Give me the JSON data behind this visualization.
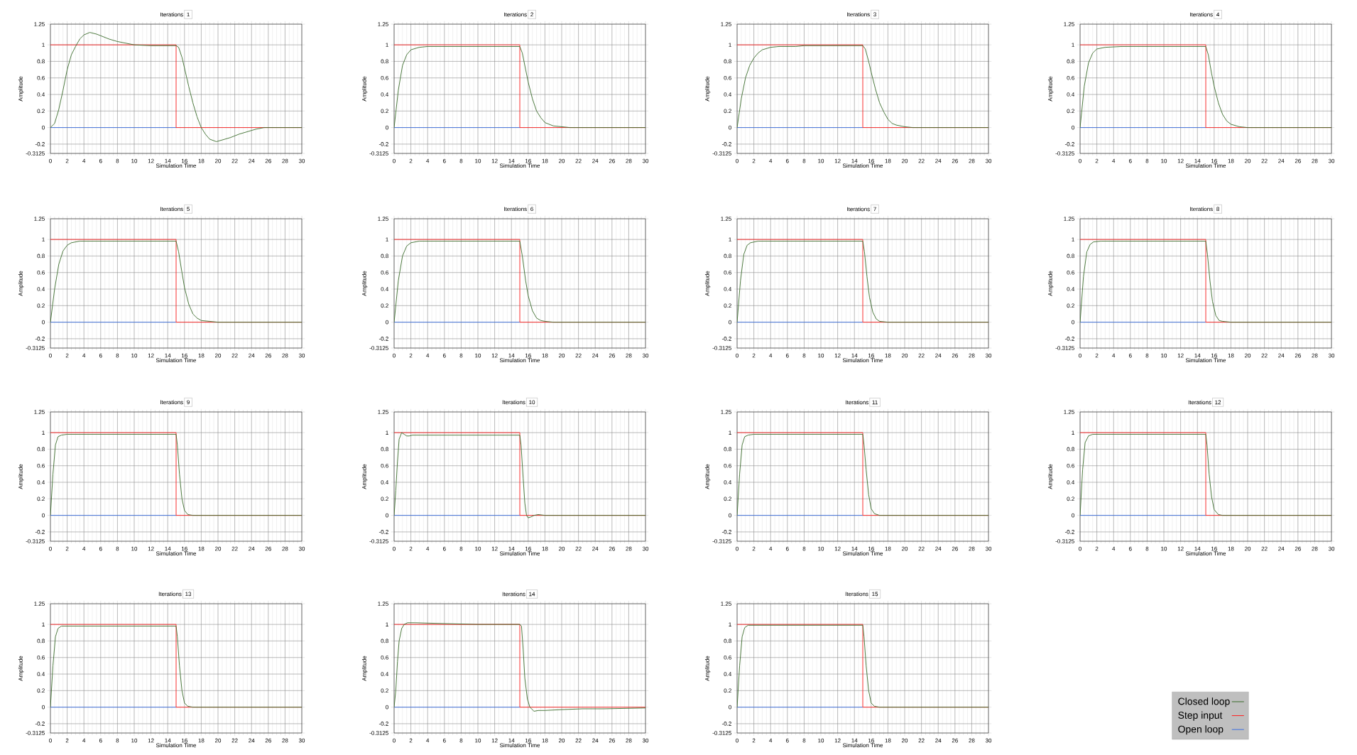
{
  "chart_data": [
    {
      "type": "line",
      "title": "Iterations",
      "subtitle": "1",
      "xlabel": "Simulation Time",
      "ylabel": "Amplitude",
      "xlim": [
        0,
        30
      ],
      "ylim": [
        -0.3125,
        1.25
      ],
      "xticks": [
        0,
        2,
        4,
        6,
        8,
        10,
        12,
        14,
        16,
        18,
        20,
        22,
        24,
        26,
        28,
        30
      ],
      "yticks": [
        -0.3125,
        -0.2,
        0,
        0.2,
        0.4,
        0.6,
        0.8,
        1,
        1.25
      ],
      "grid": true,
      "series": [
        {
          "type": "line",
          "color": "#3a6b2a",
          "x": [
            0,
            0.5,
            1,
            1.5,
            2,
            2.5,
            3,
            3.5,
            4,
            4.7,
            5.5,
            6,
            7,
            8,
            9,
            10,
            12,
            14,
            15,
            15.3,
            15.7,
            16,
            16.5,
            17,
            17.5,
            18,
            18.5,
            19,
            19.8,
            20.5,
            21.5,
            22.5,
            23.5,
            24.5,
            25.5,
            30
          ],
          "values": [
            0,
            0.05,
            0.22,
            0.45,
            0.7,
            0.88,
            0.98,
            1.07,
            1.12,
            1.15,
            1.13,
            1.11,
            1.07,
            1.04,
            1.02,
            1.0,
            0.99,
            0.99,
            0.99,
            0.97,
            0.85,
            0.72,
            0.5,
            0.3,
            0.13,
            0,
            -0.08,
            -0.14,
            -0.17,
            -0.15,
            -0.12,
            -0.08,
            -0.05,
            -0.02,
            0,
            0
          ]
        },
        {
          "type": "step",
          "color": "#ff2020",
          "x": [
            0,
            15,
            30
          ],
          "values": [
            1,
            0,
            0
          ]
        },
        {
          "type": "line",
          "color": "#3b6fe0",
          "x": [
            0,
            15
          ],
          "values": [
            0,
            0
          ]
        }
      ]
    },
    {
      "type": "line",
      "title": "Iterations",
      "subtitle": "2",
      "xlabel": "Simulation Time",
      "ylabel": "Amplitude",
      "xlim": [
        0,
        30
      ],
      "ylim": [
        -0.3125,
        1.25
      ],
      "xticks": [
        0,
        2,
        4,
        6,
        8,
        10,
        12,
        14,
        16,
        18,
        20,
        22,
        24,
        26,
        28,
        30
      ],
      "yticks": [
        -0.3125,
        -0.2,
        0,
        0.2,
        0.4,
        0.6,
        0.8,
        1,
        1.25
      ],
      "grid": true,
      "series": [
        {
          "type": "line",
          "color": "#3a6b2a",
          "x": [
            0,
            0.5,
            1,
            1.5,
            2,
            3,
            4,
            15,
            15.3,
            15.7,
            16,
            16.5,
            17,
            17.5,
            18,
            19,
            20,
            21,
            30
          ],
          "values": [
            0,
            0.45,
            0.75,
            0.88,
            0.94,
            0.97,
            0.98,
            0.98,
            0.9,
            0.7,
            0.55,
            0.35,
            0.2,
            0.12,
            0.06,
            0.02,
            0.01,
            0,
            0
          ]
        },
        {
          "type": "step",
          "color": "#ff2020",
          "x": [
            0,
            15,
            30
          ],
          "values": [
            1,
            0,
            0
          ]
        },
        {
          "type": "line",
          "color": "#3b6fe0",
          "x": [
            0,
            15
          ],
          "values": [
            0,
            0
          ]
        }
      ]
    },
    {
      "type": "line",
      "title": "Iterations",
      "subtitle": "3",
      "xlabel": "Simulation Time",
      "ylabel": "Amplitude",
      "xlim": [
        0,
        30
      ],
      "ylim": [
        -0.3125,
        1.25
      ],
      "xticks": [
        0,
        2,
        4,
        6,
        8,
        10,
        12,
        14,
        16,
        18,
        20,
        22,
        24,
        26,
        28,
        30
      ],
      "yticks": [
        -0.3125,
        -0.2,
        0,
        0.2,
        0.4,
        0.6,
        0.8,
        1,
        1.25
      ],
      "grid": true,
      "series": [
        {
          "type": "line",
          "color": "#3a6b2a",
          "x": [
            0,
            0.5,
            1,
            1.5,
            2,
            2.5,
            3,
            4,
            5,
            7,
            8,
            15,
            15.3,
            15.7,
            16,
            16.5,
            17,
            17.5,
            18,
            18.5,
            19,
            20,
            21,
            30
          ],
          "values": [
            0,
            0.35,
            0.6,
            0.75,
            0.84,
            0.9,
            0.94,
            0.97,
            0.98,
            0.98,
            0.99,
            0.99,
            0.95,
            0.8,
            0.67,
            0.47,
            0.3,
            0.19,
            0.1,
            0.05,
            0.03,
            0.01,
            0,
            0
          ]
        },
        {
          "type": "step",
          "color": "#ff2020",
          "x": [
            0,
            15,
            30
          ],
          "values": [
            1,
            0,
            0
          ]
        },
        {
          "type": "line",
          "color": "#3b6fe0",
          "x": [
            0,
            15
          ],
          "values": [
            0,
            0
          ]
        }
      ]
    },
    {
      "type": "line",
      "title": "Iterations",
      "subtitle": "4",
      "xlabel": "Simulation Time",
      "ylabel": "Amplitude",
      "xlim": [
        0,
        30
      ],
      "ylim": [
        -0.3125,
        1.25
      ],
      "xticks": [
        0,
        2,
        4,
        6,
        8,
        10,
        12,
        14,
        16,
        18,
        20,
        22,
        24,
        26,
        28,
        30
      ],
      "yticks": [
        -0.3125,
        -0.2,
        0,
        0.2,
        0.4,
        0.6,
        0.8,
        1,
        1.25
      ],
      "grid": true,
      "series": [
        {
          "type": "line",
          "color": "#3a6b2a",
          "x": [
            0,
            0.5,
            1,
            1.5,
            2,
            3,
            5,
            15,
            15.3,
            15.7,
            16,
            16.5,
            17,
            17.5,
            18,
            19,
            20,
            30
          ],
          "values": [
            0,
            0.5,
            0.78,
            0.9,
            0.95,
            0.97,
            0.98,
            0.98,
            0.88,
            0.65,
            0.5,
            0.3,
            0.16,
            0.08,
            0.04,
            0.01,
            0,
            0
          ]
        },
        {
          "type": "step",
          "color": "#ff2020",
          "x": [
            0,
            15,
            30
          ],
          "values": [
            1,
            0,
            0
          ]
        },
        {
          "type": "line",
          "color": "#3b6fe0",
          "x": [
            0,
            15
          ],
          "values": [
            0,
            0
          ]
        }
      ]
    },
    {
      "type": "line",
      "title": "Iterations",
      "subtitle": "5",
      "xlabel": "Simulation Time",
      "ylabel": "Amplitude",
      "xlim": [
        0,
        30
      ],
      "ylim": [
        -0.3125,
        1.25
      ],
      "xticks": [
        0,
        2,
        4,
        6,
        8,
        10,
        12,
        14,
        16,
        18,
        20,
        22,
        24,
        26,
        28,
        30
      ],
      "yticks": [
        -0.3125,
        -0.2,
        0,
        0.2,
        0.4,
        0.6,
        0.8,
        1,
        1.25
      ],
      "grid": true,
      "series": [
        {
          "type": "line",
          "color": "#3a6b2a",
          "x": [
            0,
            0.5,
            1,
            1.5,
            2,
            2.5,
            3.5,
            15,
            15.3,
            15.7,
            16,
            16.5,
            17,
            17.5,
            18,
            19,
            20,
            30
          ],
          "values": [
            0,
            0.4,
            0.7,
            0.86,
            0.93,
            0.96,
            0.98,
            0.98,
            0.85,
            0.6,
            0.42,
            0.22,
            0.1,
            0.05,
            0.02,
            0.01,
            0,
            0
          ]
        },
        {
          "type": "step",
          "color": "#ff2020",
          "x": [
            0,
            15,
            30
          ],
          "values": [
            1,
            0,
            0
          ]
        },
        {
          "type": "line",
          "color": "#3b6fe0",
          "x": [
            0,
            15
          ],
          "values": [
            0,
            0
          ]
        }
      ]
    },
    {
      "type": "line",
      "title": "Iterations",
      "subtitle": "6",
      "xlabel": "Simulation Time",
      "ylabel": "Amplitude",
      "xlim": [
        0,
        30
      ],
      "ylim": [
        -0.3125,
        1.25
      ],
      "xticks": [
        0,
        2,
        4,
        6,
        8,
        10,
        12,
        14,
        16,
        18,
        20,
        22,
        24,
        26,
        28,
        30
      ],
      "yticks": [
        -0.3125,
        -0.2,
        0,
        0.2,
        0.4,
        0.6,
        0.8,
        1,
        1.25
      ],
      "grid": true,
      "series": [
        {
          "type": "line",
          "color": "#3a6b2a",
          "x": [
            0,
            0.5,
            1,
            1.5,
            2,
            3,
            15,
            15.3,
            15.7,
            16,
            16.5,
            17,
            17.5,
            18,
            19,
            30
          ],
          "values": [
            0,
            0.5,
            0.8,
            0.92,
            0.96,
            0.98,
            0.98,
            0.8,
            0.5,
            0.32,
            0.14,
            0.05,
            0.02,
            0.01,
            0,
            0
          ]
        },
        {
          "type": "step",
          "color": "#ff2020",
          "x": [
            0,
            15,
            30
          ],
          "values": [
            1,
            0,
            0
          ]
        },
        {
          "type": "line",
          "color": "#3b6fe0",
          "x": [
            0,
            15
          ],
          "values": [
            0,
            0
          ]
        }
      ]
    },
    {
      "type": "line",
      "title": "Iterations",
      "subtitle": "7",
      "xlabel": "Simulation Time",
      "ylabel": "Amplitude",
      "xlim": [
        0,
        30
      ],
      "ylim": [
        -0.3125,
        1.25
      ],
      "xticks": [
        0,
        2,
        4,
        6,
        8,
        10,
        12,
        14,
        16,
        18,
        20,
        22,
        24,
        26,
        28,
        30
      ],
      "yticks": [
        -0.3125,
        -0.2,
        0,
        0.2,
        0.4,
        0.6,
        0.8,
        1,
        1.25
      ],
      "grid": true,
      "series": [
        {
          "type": "line",
          "color": "#3a6b2a",
          "x": [
            0,
            0.4,
            0.8,
            1.2,
            1.6,
            2.5,
            15,
            15.2,
            15.5,
            15.8,
            16.2,
            16.6,
            17,
            18,
            30
          ],
          "values": [
            0,
            0.5,
            0.82,
            0.93,
            0.96,
            0.98,
            0.98,
            0.85,
            0.55,
            0.3,
            0.12,
            0.04,
            0.01,
            0,
            0
          ]
        },
        {
          "type": "step",
          "color": "#ff2020",
          "x": [
            0,
            15,
            30
          ],
          "values": [
            1,
            0,
            0
          ]
        },
        {
          "type": "line",
          "color": "#3b6fe0",
          "x": [
            0,
            15
          ],
          "values": [
            0,
            0
          ]
        }
      ]
    },
    {
      "type": "line",
      "title": "Iterations",
      "subtitle": "8",
      "xlabel": "Simulation Time",
      "ylabel": "Amplitude",
      "xlim": [
        0,
        30
      ],
      "ylim": [
        -0.3125,
        1.25
      ],
      "xticks": [
        0,
        2,
        4,
        6,
        8,
        10,
        12,
        14,
        16,
        18,
        20,
        22,
        24,
        26,
        28,
        30
      ],
      "yticks": [
        -0.3125,
        -0.2,
        0,
        0.2,
        0.4,
        0.6,
        0.8,
        1,
        1.25
      ],
      "grid": true,
      "series": [
        {
          "type": "line",
          "color": "#3a6b2a",
          "x": [
            0,
            0.4,
            0.8,
            1.2,
            1.6,
            2.5,
            15,
            15.2,
            15.5,
            15.8,
            16.2,
            16.6,
            17,
            18,
            30
          ],
          "values": [
            0,
            0.55,
            0.85,
            0.94,
            0.97,
            0.98,
            0.98,
            0.82,
            0.5,
            0.25,
            0.08,
            0.02,
            0.01,
            0,
            0
          ]
        },
        {
          "type": "step",
          "color": "#ff2020",
          "x": [
            0,
            15,
            30
          ],
          "values": [
            1,
            0,
            0
          ]
        },
        {
          "type": "line",
          "color": "#3b6fe0",
          "x": [
            0,
            15
          ],
          "values": [
            0,
            0
          ]
        }
      ]
    },
    {
      "type": "line",
      "title": "Iterations",
      "subtitle": "9",
      "xlabel": "Simulation Time",
      "ylabel": "Amplitude",
      "xlim": [
        0,
        30
      ],
      "ylim": [
        -0.3125,
        1.25
      ],
      "xticks": [
        0,
        2,
        4,
        6,
        8,
        10,
        12,
        14,
        16,
        18,
        20,
        22,
        24,
        26,
        28,
        30
      ],
      "yticks": [
        -0.3125,
        -0.2,
        0,
        0.2,
        0.4,
        0.6,
        0.8,
        1,
        1.25
      ],
      "grid": true,
      "series": [
        {
          "type": "line",
          "color": "#3a6b2a",
          "x": [
            0,
            0.3,
            0.6,
            0.9,
            1.3,
            2,
            15,
            15.15,
            15.4,
            15.7,
            16,
            16.4,
            17,
            30
          ],
          "values": [
            0,
            0.5,
            0.85,
            0.95,
            0.97,
            0.98,
            0.98,
            0.85,
            0.5,
            0.2,
            0.06,
            0.01,
            0,
            0
          ]
        },
        {
          "type": "step",
          "color": "#ff2020",
          "x": [
            0,
            15,
            30
          ],
          "values": [
            1,
            0,
            0
          ]
        },
        {
          "type": "line",
          "color": "#3b6fe0",
          "x": [
            0,
            15
          ],
          "values": [
            0,
            0
          ]
        }
      ]
    },
    {
      "type": "line",
      "title": "Iterations",
      "subtitle": "10",
      "xlabel": "Simulation Time",
      "ylabel": "Amplitude",
      "xlim": [
        0,
        30
      ],
      "ylim": [
        -0.3125,
        1.25
      ],
      "xticks": [
        0,
        2,
        4,
        6,
        8,
        10,
        12,
        14,
        16,
        18,
        20,
        22,
        24,
        26,
        28,
        30
      ],
      "yticks": [
        -0.3125,
        -0.2,
        0,
        0.2,
        0.4,
        0.6,
        0.8,
        1,
        1.25
      ],
      "grid": true,
      "series": [
        {
          "type": "line",
          "color": "#3a6b2a",
          "x": [
            0,
            0.2,
            0.4,
            0.6,
            0.9,
            1.2,
            1.5,
            1.8,
            2.2,
            15,
            15.15,
            15.4,
            15.6,
            15.8,
            16,
            16.3,
            16.7,
            17.2,
            18,
            30
          ],
          "values": [
            0,
            0.3,
            0.65,
            0.92,
            1.0,
            0.98,
            0.96,
            0.96,
            0.97,
            0.97,
            0.85,
            0.45,
            0.15,
            0,
            -0.03,
            -0.02,
            0,
            0.01,
            0,
            0
          ]
        },
        {
          "type": "step",
          "color": "#ff2020",
          "x": [
            0,
            15,
            30
          ],
          "values": [
            1,
            0,
            0
          ]
        },
        {
          "type": "line",
          "color": "#3b6fe0",
          "x": [
            0,
            15
          ],
          "values": [
            0,
            0
          ]
        }
      ]
    },
    {
      "type": "line",
      "title": "Iterations",
      "subtitle": "11",
      "xlabel": "Simulation Time",
      "ylabel": "Amplitude",
      "xlim": [
        0,
        30
      ],
      "ylim": [
        -0.3125,
        1.25
      ],
      "xticks": [
        0,
        2,
        4,
        6,
        8,
        10,
        12,
        14,
        16,
        18,
        20,
        22,
        24,
        26,
        28,
        30
      ],
      "yticks": [
        -0.3125,
        -0.2,
        0,
        0.2,
        0.4,
        0.6,
        0.8,
        1,
        1.25
      ],
      "grid": true,
      "series": [
        {
          "type": "line",
          "color": "#3a6b2a",
          "x": [
            0,
            0.3,
            0.6,
            0.9,
            1.3,
            2,
            15,
            15.15,
            15.4,
            15.7,
            16,
            16.4,
            17,
            30
          ],
          "values": [
            0,
            0.5,
            0.85,
            0.95,
            0.97,
            0.98,
            0.98,
            0.85,
            0.55,
            0.25,
            0.08,
            0.02,
            0,
            0
          ]
        },
        {
          "type": "step",
          "color": "#ff2020",
          "x": [
            0,
            15,
            30
          ],
          "values": [
            1,
            0,
            0
          ]
        },
        {
          "type": "line",
          "color": "#3b6fe0",
          "x": [
            0,
            15
          ],
          "values": [
            0,
            0
          ]
        }
      ]
    },
    {
      "type": "line",
      "title": "Iterations",
      "subtitle": "12",
      "xlabel": "Simulation Time",
      "ylabel": "Amplitude",
      "xlim": [
        0,
        30
      ],
      "ylim": [
        -0.3125,
        1.25
      ],
      "xticks": [
        0,
        2,
        4,
        6,
        8,
        10,
        12,
        14,
        16,
        18,
        20,
        22,
        24,
        26,
        28,
        30
      ],
      "yticks": [
        -0.3125,
        -0.2,
        0,
        0.2,
        0.4,
        0.6,
        0.8,
        1,
        1.25
      ],
      "grid": true,
      "series": [
        {
          "type": "line",
          "color": "#3a6b2a",
          "x": [
            0,
            0.3,
            0.6,
            1,
            1.5,
            3,
            15,
            15.15,
            15.4,
            15.7,
            16,
            16.5,
            17,
            30
          ],
          "values": [
            0,
            0.55,
            0.88,
            0.96,
            0.98,
            0.98,
            0.98,
            0.85,
            0.5,
            0.22,
            0.07,
            0.01,
            0,
            0
          ]
        },
        {
          "type": "step",
          "color": "#ff2020",
          "x": [
            0,
            15,
            30
          ],
          "values": [
            1,
            0,
            0
          ]
        },
        {
          "type": "line",
          "color": "#3b6fe0",
          "x": [
            0,
            15
          ],
          "values": [
            0,
            0
          ]
        }
      ]
    },
    {
      "type": "line",
      "title": "Iterations",
      "subtitle": "13",
      "xlabel": "Simulation Time",
      "ylabel": "Amplitude",
      "xlim": [
        0,
        30
      ],
      "ylim": [
        -0.3125,
        1.25
      ],
      "xticks": [
        0,
        2,
        4,
        6,
        8,
        10,
        12,
        14,
        16,
        18,
        20,
        22,
        24,
        26,
        28,
        30
      ],
      "yticks": [
        -0.3125,
        -0.2,
        0,
        0.2,
        0.4,
        0.6,
        0.8,
        1,
        1.25
      ],
      "grid": true,
      "series": [
        {
          "type": "line",
          "color": "#3a6b2a",
          "x": [
            0,
            0.3,
            0.6,
            0.9,
            1.3,
            2,
            15,
            15.15,
            15.4,
            15.7,
            16,
            16.4,
            17,
            30
          ],
          "values": [
            0,
            0.5,
            0.85,
            0.95,
            0.98,
            0.98,
            0.98,
            0.85,
            0.5,
            0.2,
            0.05,
            0.01,
            0,
            0
          ]
        },
        {
          "type": "step",
          "color": "#ff2020",
          "x": [
            0,
            15,
            30
          ],
          "values": [
            1,
            0,
            0
          ]
        },
        {
          "type": "line",
          "color": "#3b6fe0",
          "x": [
            0,
            15
          ],
          "values": [
            0,
            0
          ]
        }
      ]
    },
    {
      "type": "line",
      "title": "Iterations",
      "subtitle": "14",
      "xlabel": "Simulation Time",
      "ylabel": "Amplitude",
      "xlim": [
        0,
        30
      ],
      "ylim": [
        -0.3125,
        1.25
      ],
      "xticks": [
        0,
        2,
        4,
        6,
        8,
        10,
        12,
        14,
        16,
        18,
        20,
        22,
        24,
        26,
        28,
        30
      ],
      "yticks": [
        -0.3125,
        -0.2,
        0,
        0.2,
        0.4,
        0.6,
        0.8,
        1,
        1.25
      ],
      "grid": true,
      "series": [
        {
          "type": "line",
          "color": "#3a6b2a",
          "x": [
            0,
            0.2,
            0.4,
            0.6,
            0.9,
            1.2,
            1.6,
            2.5,
            6,
            10,
            15,
            15.2,
            15.4,
            15.6,
            15.9,
            16.2,
            16.7,
            17.2,
            18,
            20,
            22.5,
            25,
            30
          ],
          "values": [
            0,
            0.2,
            0.55,
            0.8,
            0.95,
            1.0,
            1.02,
            1.02,
            1.01,
            1.0,
            1.0,
            0.98,
            0.7,
            0.35,
            0.1,
            0,
            -0.05,
            -0.04,
            -0.04,
            -0.03,
            -0.02,
            -0.02,
            -0.01
          ]
        },
        {
          "type": "step",
          "color": "#ff2020",
          "x": [
            0,
            15,
            30
          ],
          "values": [
            1,
            0,
            0
          ]
        },
        {
          "type": "line",
          "color": "#3b6fe0",
          "x": [
            0,
            15
          ],
          "values": [
            0,
            0
          ]
        }
      ]
    },
    {
      "type": "line",
      "title": "Iterations",
      "subtitle": "15",
      "xlabel": "Simulation Time",
      "ylabel": "Amplitude",
      "xlim": [
        0,
        30
      ],
      "ylim": [
        -0.3125,
        1.25
      ],
      "xticks": [
        0,
        2,
        4,
        6,
        8,
        10,
        12,
        14,
        16,
        18,
        20,
        22,
        24,
        26,
        28,
        30
      ],
      "yticks": [
        -0.3125,
        -0.2,
        0,
        0.2,
        0.4,
        0.6,
        0.8,
        1,
        1.25
      ],
      "grid": true,
      "legend": "right",
      "series": [
        {
          "type": "line",
          "name": "Closed loop",
          "color": "#3a6b2a",
          "x": [
            0,
            0.3,
            0.6,
            0.9,
            1.3,
            2,
            15,
            15.15,
            15.4,
            15.7,
            16,
            16.4,
            17,
            30
          ],
          "values": [
            0,
            0.5,
            0.85,
            0.96,
            0.99,
            0.99,
            0.99,
            0.85,
            0.5,
            0.2,
            0.05,
            0.01,
            0,
            0
          ]
        },
        {
          "type": "step",
          "name": "Step input",
          "color": "#ff2020",
          "x": [
            0,
            15,
            30
          ],
          "values": [
            1,
            0,
            0
          ]
        },
        {
          "type": "line",
          "name": "Open loop",
          "color": "#3b6fe0",
          "x": [
            0,
            15
          ],
          "values": [
            0,
            0
          ]
        }
      ]
    }
  ]
}
